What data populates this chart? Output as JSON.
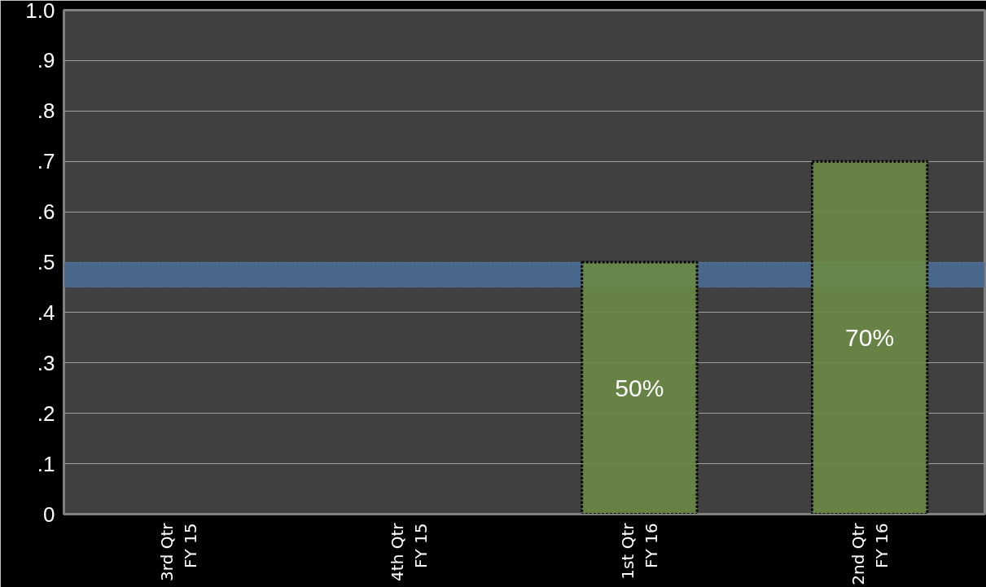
{
  "chart_data": {
    "type": "bar",
    "categories": [
      "3rd Qtr\nFY 15",
      "4th Qtr\nFY 15",
      "1st Qtr\nFY 16",
      "2nd Qtr\nFY 16"
    ],
    "values": [
      null,
      null,
      0.5,
      0.7
    ],
    "value_labels": [
      null,
      null,
      "50%",
      "70%"
    ],
    "color": "#6a8a45",
    "ylim": [
      0,
      1.0
    ],
    "yticks": [
      {
        "value": 0,
        "label": "0"
      },
      {
        "value": 0.1,
        "label": ".1"
      },
      {
        "value": 0.2,
        "label": ".2"
      },
      {
        "value": 0.3,
        "label": ".3"
      },
      {
        "value": 0.4,
        "label": ".4"
      },
      {
        "value": 0.5,
        "label": ".5"
      },
      {
        "value": 0.6,
        "label": ".6"
      },
      {
        "value": 0.7,
        "label": ".7"
      },
      {
        "value": 0.8,
        "label": ".8"
      },
      {
        "value": 0.9,
        "label": ".9"
      },
      {
        "value": 1.0,
        "label": "1.0"
      }
    ],
    "grid": "y",
    "bands": [
      {
        "axis": "y",
        "from": 0.45,
        "to": 0.5,
        "color": "#4a6a94"
      }
    ]
  }
}
